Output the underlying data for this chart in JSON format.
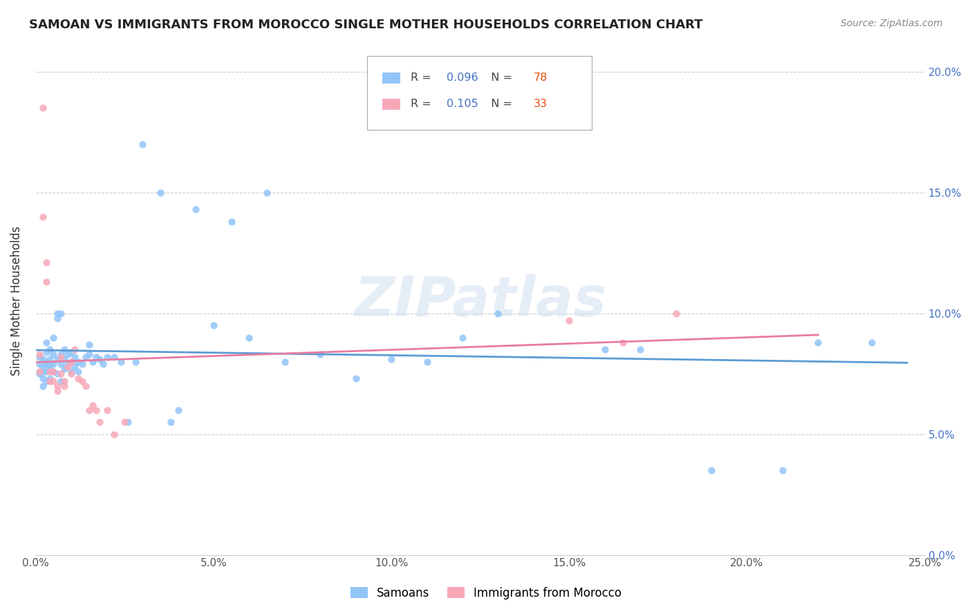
{
  "title": "SAMOAN VS IMMIGRANTS FROM MOROCCO SINGLE MOTHER HOUSEHOLDS CORRELATION CHART",
  "source": "Source: ZipAtlas.com",
  "ylabel": "Single Mother Households",
  "xlim": [
    0.0,
    0.25
  ],
  "ylim": [
    0.0,
    0.21
  ],
  "xticks": [
    0.0,
    0.05,
    0.1,
    0.15,
    0.2,
    0.25
  ],
  "yticks": [
    0.0,
    0.05,
    0.1,
    0.15,
    0.2
  ],
  "samoan_color": "#92c5f7",
  "morocco_color": "#f7a8b8",
  "samoan_line_color": "#5b9bd5",
  "morocco_line_color": "#e87ca0",
  "legend_R1": "0.096",
  "legend_N1": "78",
  "legend_R2": "0.105",
  "legend_N2": "33",
  "watermark": "ZIPatlas",
  "sam_x": [
    0.001,
    0.001,
    0.001,
    0.002,
    0.002,
    0.002,
    0.002,
    0.002,
    0.003,
    0.003,
    0.003,
    0.003,
    0.003,
    0.003,
    0.004,
    0.004,
    0.004,
    0.004,
    0.004,
    0.005,
    0.005,
    0.005,
    0.005,
    0.006,
    0.006,
    0.006,
    0.006,
    0.007,
    0.007,
    0.007,
    0.007,
    0.008,
    0.008,
    0.008,
    0.009,
    0.009,
    0.01,
    0.01,
    0.01,
    0.011,
    0.011,
    0.012,
    0.012,
    0.013,
    0.014,
    0.015,
    0.015,
    0.016,
    0.017,
    0.018,
    0.019,
    0.02,
    0.022,
    0.024,
    0.026,
    0.028,
    0.03,
    0.035,
    0.038,
    0.04,
    0.045,
    0.05,
    0.055,
    0.06,
    0.065,
    0.07,
    0.08,
    0.09,
    0.1,
    0.11,
    0.12,
    0.13,
    0.16,
    0.17,
    0.19,
    0.21,
    0.22,
    0.235
  ],
  "sam_y": [
    0.079,
    0.075,
    0.082,
    0.076,
    0.081,
    0.073,
    0.07,
    0.078,
    0.08,
    0.084,
    0.076,
    0.072,
    0.088,
    0.079,
    0.081,
    0.077,
    0.073,
    0.085,
    0.079,
    0.083,
    0.076,
    0.09,
    0.079,
    0.1,
    0.098,
    0.081,
    0.075,
    0.083,
    0.079,
    0.1,
    0.072,
    0.085,
    0.081,
    0.077,
    0.083,
    0.079,
    0.084,
    0.08,
    0.076,
    0.082,
    0.078,
    0.08,
    0.076,
    0.079,
    0.082,
    0.087,
    0.083,
    0.08,
    0.082,
    0.081,
    0.079,
    0.082,
    0.082,
    0.08,
    0.055,
    0.08,
    0.17,
    0.15,
    0.055,
    0.06,
    0.143,
    0.095,
    0.138,
    0.09,
    0.15,
    0.08,
    0.083,
    0.073,
    0.081,
    0.08,
    0.09,
    0.1,
    0.085,
    0.085,
    0.035,
    0.035,
    0.088,
    0.088
  ],
  "mor_x": [
    0.001,
    0.001,
    0.002,
    0.002,
    0.003,
    0.003,
    0.004,
    0.004,
    0.005,
    0.005,
    0.006,
    0.006,
    0.007,
    0.007,
    0.008,
    0.008,
    0.009,
    0.01,
    0.01,
    0.011,
    0.012,
    0.013,
    0.014,
    0.015,
    0.016,
    0.017,
    0.018,
    0.02,
    0.022,
    0.025,
    0.15,
    0.165,
    0.18
  ],
  "mor_y": [
    0.076,
    0.083,
    0.14,
    0.185,
    0.121,
    0.113,
    0.076,
    0.072,
    0.076,
    0.072,
    0.07,
    0.068,
    0.082,
    0.075,
    0.072,
    0.07,
    0.078,
    0.08,
    0.075,
    0.085,
    0.073,
    0.072,
    0.07,
    0.06,
    0.062,
    0.06,
    0.055,
    0.06,
    0.05,
    0.055,
    0.097,
    0.088,
    0.1
  ]
}
